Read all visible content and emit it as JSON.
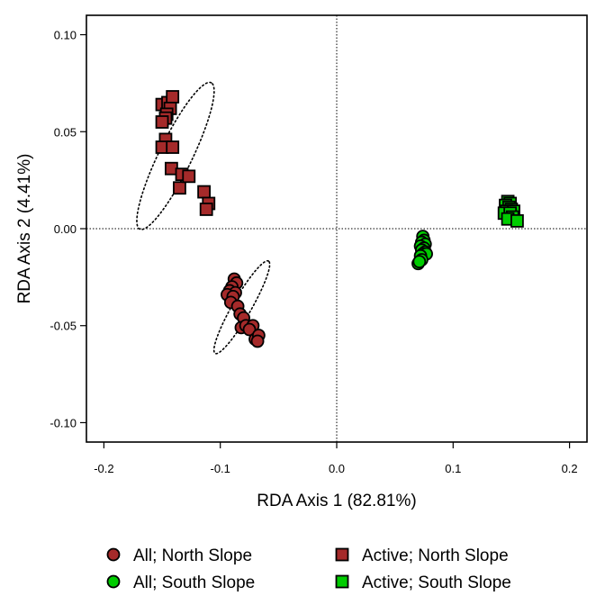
{
  "chart_data": {
    "type": "scatter",
    "xlabel": "RDA Axis 1 (82.81%)",
    "ylabel": "RDA Axis 2 (4.41%)",
    "xlim": [
      -0.215,
      0.215
    ],
    "ylim": [
      -0.11,
      0.11
    ],
    "xticks": [
      -0.2,
      -0.1,
      0.0,
      0.1,
      0.2
    ],
    "xtick_labels": [
      "-0.2",
      "-0.1",
      "0.0",
      "0.1",
      "0.2"
    ],
    "yticks": [
      -0.1,
      -0.05,
      0.0,
      0.05,
      0.1
    ],
    "ytick_labels": [
      "-0.10",
      "-0.05",
      "0.00",
      "0.05",
      "0.10"
    ],
    "reference_lines": {
      "x": 0,
      "y": 0,
      "style": "dotted"
    },
    "legend_position": "bottom",
    "series": [
      {
        "name": "All; North Slope",
        "marker": "circle",
        "color": "#a52a2a",
        "points": [
          [
            -0.088,
            -0.026
          ],
          [
            -0.086,
            -0.028
          ],
          [
            -0.09,
            -0.03
          ],
          [
            -0.092,
            -0.032
          ],
          [
            -0.087,
            -0.033
          ],
          [
            -0.094,
            -0.034
          ],
          [
            -0.089,
            -0.035
          ],
          [
            -0.091,
            -0.038
          ],
          [
            -0.085,
            -0.04
          ],
          [
            -0.083,
            -0.044
          ],
          [
            -0.08,
            -0.046
          ],
          [
            -0.082,
            -0.051
          ],
          [
            -0.078,
            -0.05
          ],
          [
            -0.072,
            -0.05
          ],
          [
            -0.075,
            -0.052
          ],
          [
            -0.07,
            -0.057
          ],
          [
            -0.067,
            -0.055
          ],
          [
            -0.068,
            -0.058
          ]
        ],
        "ellipse": {
          "cx": -0.0815,
          "cy": -0.0405,
          "rx": 0.0275,
          "ry": 0.0048,
          "angle_deg": 60
        }
      },
      {
        "name": "All; South Slope",
        "marker": "circle",
        "color": "#00cc00",
        "points": [
          [
            0.074,
            -0.004
          ],
          [
            0.075,
            -0.006
          ],
          [
            0.073,
            -0.007
          ],
          [
            0.076,
            -0.008
          ],
          [
            0.072,
            -0.009
          ],
          [
            0.075,
            -0.01
          ],
          [
            0.073,
            -0.011
          ],
          [
            0.076,
            -0.012
          ],
          [
            0.074,
            -0.013
          ],
          [
            0.077,
            -0.013
          ],
          [
            0.072,
            -0.014
          ],
          [
            0.073,
            -0.016
          ],
          [
            0.07,
            -0.018
          ],
          [
            0.071,
            -0.017
          ]
        ]
      },
      {
        "name": "Active; North Slope",
        "marker": "square",
        "color": "#a52a2a",
        "points": [
          [
            -0.15,
            0.064
          ],
          [
            -0.145,
            0.065
          ],
          [
            -0.141,
            0.068
          ],
          [
            -0.143,
            0.062
          ],
          [
            -0.146,
            0.059
          ],
          [
            -0.147,
            0.057
          ],
          [
            -0.15,
            0.055
          ],
          [
            -0.147,
            0.046
          ],
          [
            -0.15,
            0.042
          ],
          [
            -0.141,
            0.042
          ],
          [
            -0.142,
            0.031
          ],
          [
            -0.135,
            0.021
          ],
          [
            -0.133,
            0.028
          ],
          [
            -0.127,
            0.027
          ],
          [
            -0.114,
            0.019
          ],
          [
            -0.11,
            0.013
          ],
          [
            -0.112,
            0.01
          ]
        ],
        "ellipse": {
          "cx": -0.1385,
          "cy": 0.0375,
          "rx": 0.042,
          "ry": 0.0085,
          "angle_deg": 64
        }
      },
      {
        "name": "Active; South Slope",
        "marker": "square",
        "color": "#00cc00",
        "points": [
          [
            0.147,
            0.014
          ],
          [
            0.149,
            0.013
          ],
          [
            0.145,
            0.012
          ],
          [
            0.148,
            0.011
          ],
          [
            0.15,
            0.01
          ],
          [
            0.146,
            0.009
          ],
          [
            0.152,
            0.009
          ],
          [
            0.144,
            0.008
          ],
          [
            0.149,
            0.008
          ],
          [
            0.151,
            0.006
          ],
          [
            0.147,
            0.005
          ],
          [
            0.155,
            0.004
          ]
        ]
      }
    ]
  },
  "legend": {
    "items": [
      {
        "label": "All; North Slope",
        "marker": "circle",
        "color": "#a52a2a"
      },
      {
        "label": "Active; North Slope",
        "marker": "square",
        "color": "#a52a2a"
      },
      {
        "label": "All; South Slope",
        "marker": "circle",
        "color": "#00cc00"
      },
      {
        "label": "Active; South Slope",
        "marker": "square",
        "color": "#00cc00"
      }
    ]
  }
}
